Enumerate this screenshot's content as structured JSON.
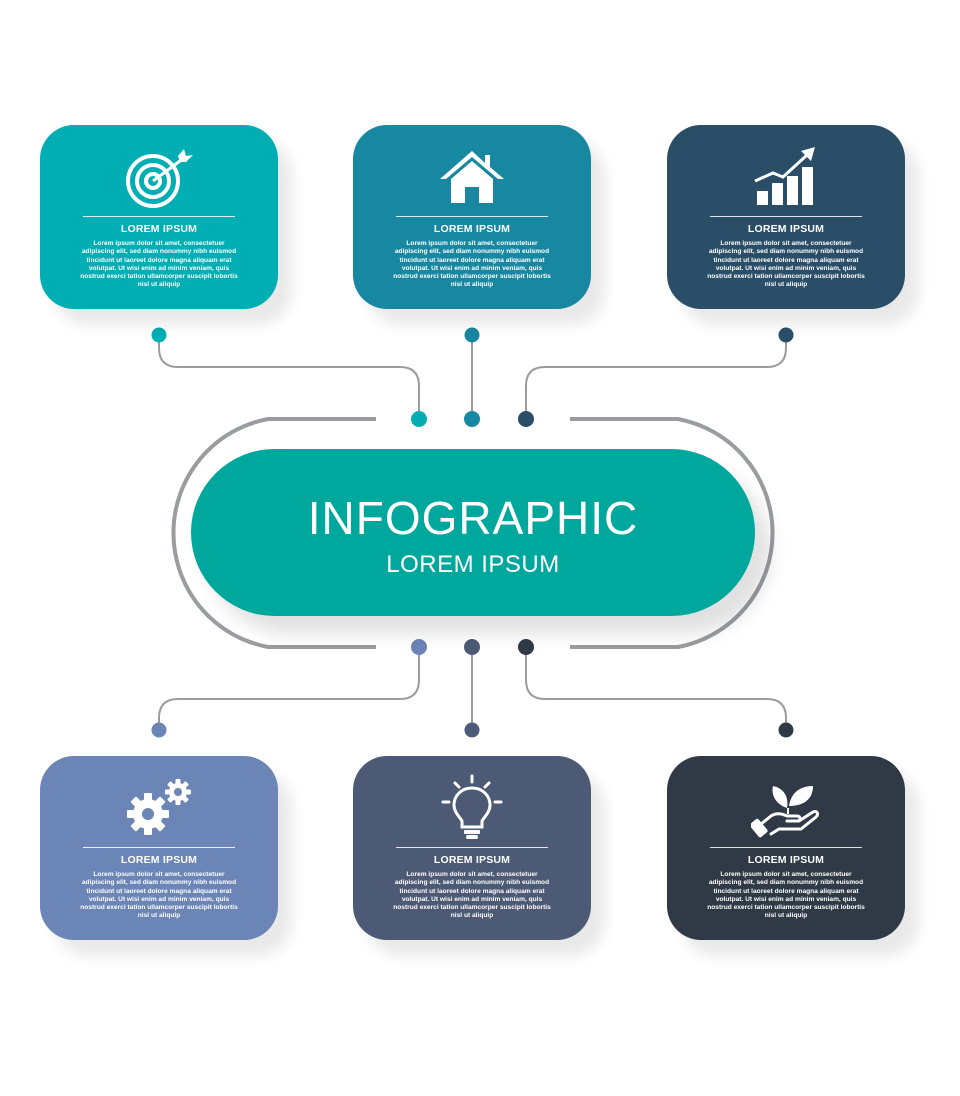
{
  "colors": {
    "connector_line": "#9a9ca0",
    "center_fill": "#00a79d"
  },
  "center": {
    "title": "INFOGRAPHIC",
    "subtitle": "LOREM IPSUM"
  },
  "cards": [
    {
      "title": "LOREM IPSUM",
      "icon": "target-icon",
      "color": "#00aeb3",
      "body": "Lorem ipsum dolor sit amet, consectetuer adipiscing elit, sed diam nonummy nibh euismod tincidunt ut laoreet dolore magna aliquam erat volutpat. Ut wisi enim ad minim veniam, quis nostrud exerci tation ullamcorper suscipit lobortis nisl ut aliquip"
    },
    {
      "title": "LOREM IPSUM",
      "icon": "home-icon",
      "color": "#1888a2",
      "body": "Lorem ipsum dolor sit amet, consectetuer adipiscing elit, sed diam nonummy nibh euismod tincidunt ut laoreet dolore magna aliquam erat volutpat. Ut wisi enim ad minim veniam, quis nostrud exerci tation ullamcorper suscipit lobortis nisl ut aliquip"
    },
    {
      "title": "LOREM IPSUM",
      "icon": "growth-chart-icon",
      "color": "#2b4e68",
      "body": "Lorem ipsum dolor sit amet, consectetuer adipiscing elit, sed diam nonummy nibh euismod tincidunt ut laoreet dolore magna aliquam erat volutpat. Ut wisi enim ad minim veniam, quis nostrud exerci tation ullamcorper suscipit lobortis nisl ut aliquip"
    },
    {
      "title": "LOREM IPSUM",
      "icon": "gears-icon",
      "color": "#6a85b6",
      "body": "Lorem ipsum dolor sit amet, consectetuer adipiscing elit, sed diam nonummy nibh euismod tincidunt ut laoreet dolore magna aliquam erat volutpat. Ut wisi enim ad minim veniam, quis nostrud exerci tation ullamcorper suscipit lobortis nisl ut aliquip"
    },
    {
      "title": "LOREM IPSUM",
      "icon": "lightbulb-icon",
      "color": "#4c5a76",
      "body": "Lorem ipsum dolor sit amet, consectetuer adipiscing elit, sed diam nonummy nibh euismod tincidunt ut laoreet dolore magna aliquam erat volutpat. Ut wisi enim ad minim veniam, quis nostrud exerci tation ullamcorper suscipit lobortis nisl ut aliquip"
    },
    {
      "title": "LOREM IPSUM",
      "icon": "hand-leaf-icon",
      "color": "#2f3a46",
      "body": "Lorem ipsum dolor sit amet, consectetuer adipiscing elit, sed diam nonummy nibh euismod tincidunt ut laoreet dolore magna aliquam erat volutpat. Ut wisi enim ad minim veniam, quis nostrud exerci tation ullamcorper suscipit lobortis nisl ut aliquip"
    }
  ]
}
